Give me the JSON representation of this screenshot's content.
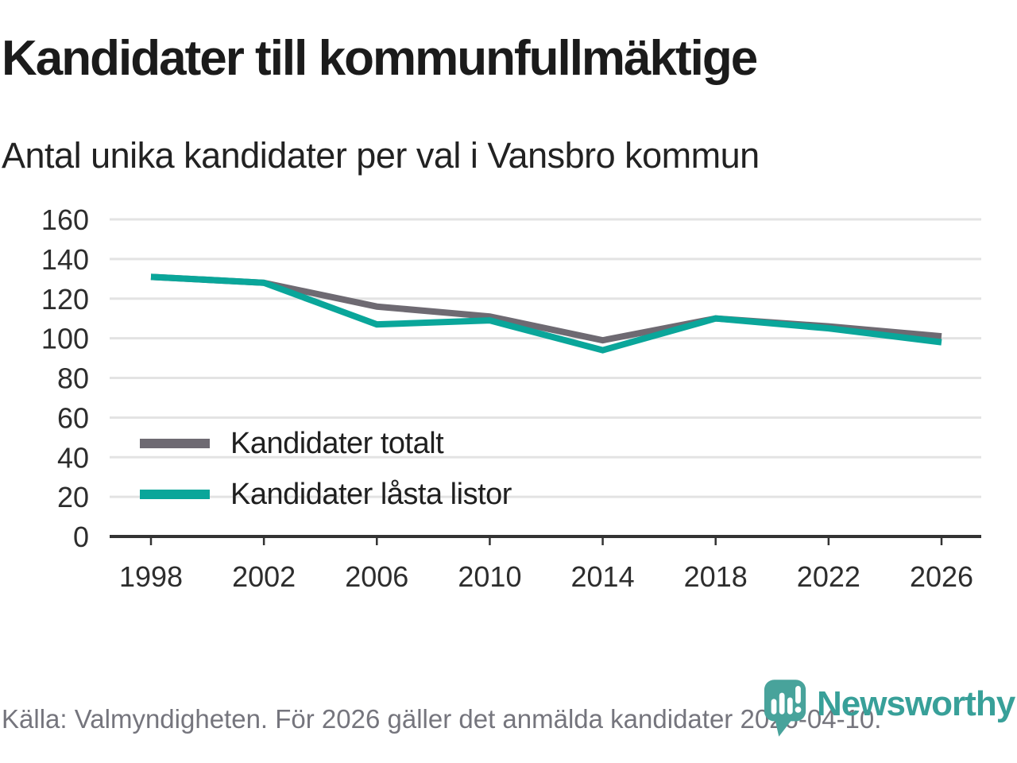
{
  "chart_data": {
    "type": "line",
    "title": "Kandidater till kommunfullmäktige",
    "subtitle": "Antal unika kandidater per val i Vansbro kommun",
    "x": [
      1998,
      2002,
      2006,
      2010,
      2014,
      2018,
      2022,
      2026
    ],
    "series": [
      {
        "name": "Kandidater totalt",
        "color": "#6e6a72",
        "values": [
          131,
          128,
          116,
          111,
          99,
          110,
          106,
          101
        ]
      },
      {
        "name": "Kandidater låsta listor",
        "color": "#0aa69a",
        "values": [
          131,
          128,
          107,
          109,
          94,
          110,
          105,
          98
        ]
      }
    ],
    "ylim": [
      0,
      160
    ],
    "yticks": [
      0,
      20,
      40,
      60,
      80,
      100,
      120,
      140,
      160
    ],
    "grid": "horizontal",
    "legend_position": "inside-bottom-left"
  },
  "footer": {
    "source_text": "Källa: Valmyndigheten. För 2026 gäller det anmälda kandidater 2026-04-10.",
    "brand_name": "Newsworthy"
  },
  "colors": {
    "accent_teal": "#0aa69a",
    "line_gray": "#6e6a72",
    "gridline": "#e3e3e3",
    "axis": "#333333",
    "tick_label": "#2d2d2d",
    "footer_text": "#75757d",
    "logo_teal": "#48a39b",
    "wordmark_teal": "#38a099"
  }
}
